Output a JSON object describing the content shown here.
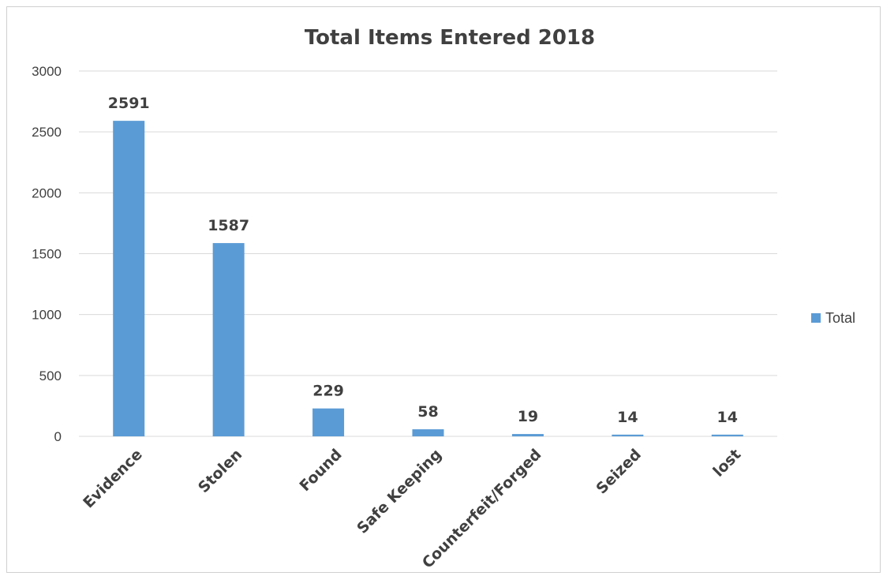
{
  "chart_data": {
    "type": "bar",
    "title": "Total Items Entered 2018",
    "xlabel": "",
    "ylabel": "",
    "categories": [
      "Evidence",
      "Stolen",
      "Found",
      "Safe Keeping",
      "Counterfeit/Forged",
      "Seized",
      "lost"
    ],
    "series": [
      {
        "name": "Total",
        "values": [
          2591,
          1587,
          229,
          58,
          19,
          14,
          14
        ]
      }
    ],
    "data_labels": [
      "2591",
      "1587",
      "229",
      "58",
      "19",
      "14",
      "14"
    ],
    "ylim": [
      0,
      3000
    ],
    "yticks": [
      "0",
      "500",
      "1000",
      "1500",
      "2000",
      "2500",
      "3000"
    ],
    "grid": true,
    "legend_position": "right",
    "colors": {
      "bar": "#5b9bd5",
      "grid": "#d9d9d9",
      "text": "#404040"
    }
  }
}
